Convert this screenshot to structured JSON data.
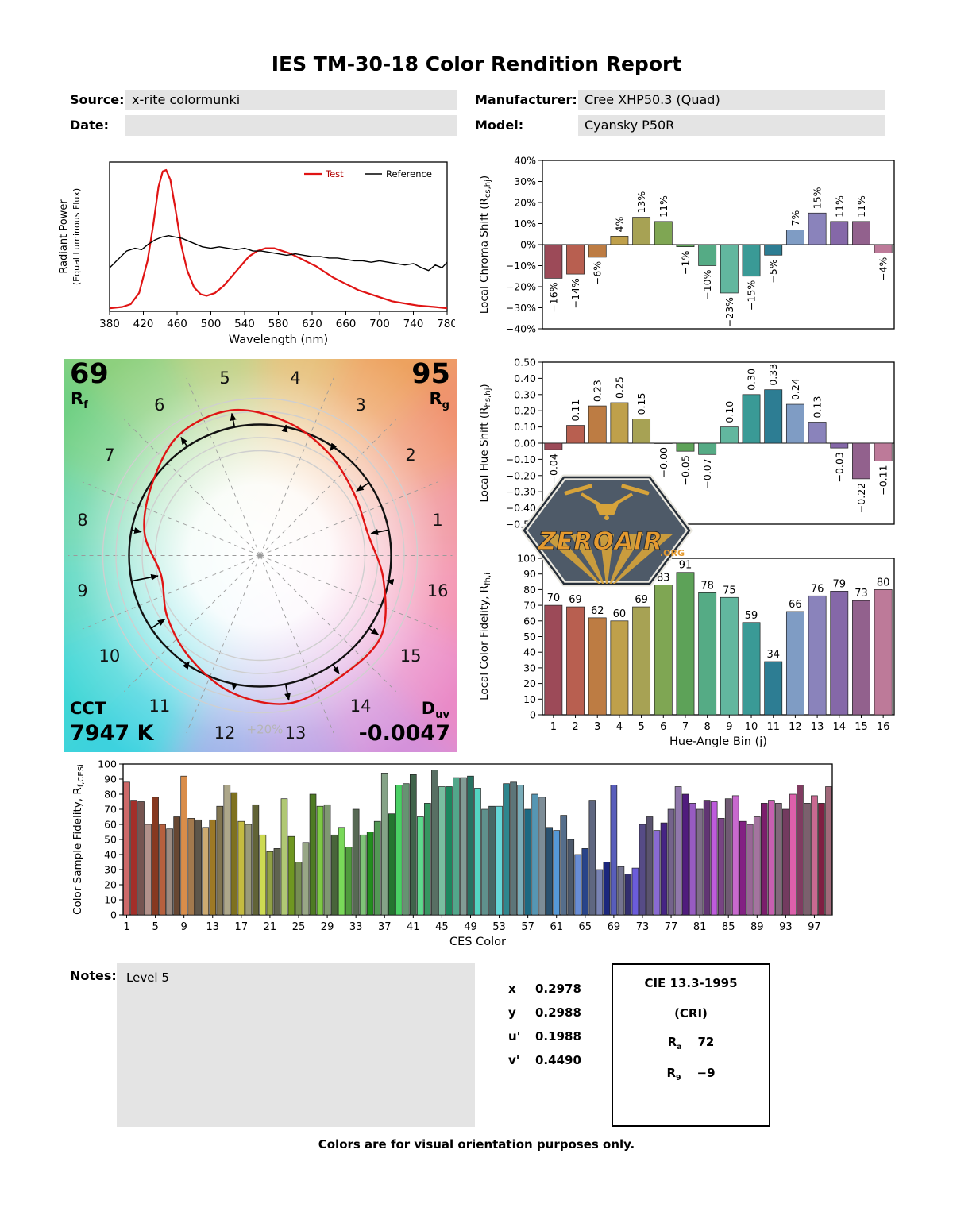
{
  "title": "IES TM-30-18 Color Rendition Report",
  "header": {
    "source_label": "Source:",
    "source_value": "x-rite colormunki",
    "date_label": "Date:",
    "date_value": "",
    "manufacturer_label": "Manufacturer:",
    "manufacturer_value": "Cree XHP50.3 (Quad)",
    "model_label": "Model:",
    "model_value": "Cyansky P50R"
  },
  "cvg": {
    "rf_value": "69",
    "rf_symbol": "R",
    "rf_sub": "f",
    "rg_value": "95",
    "rg_symbol": "R",
    "rg_sub": "g",
    "cct_label": "CCT",
    "cct_value": "7947 K",
    "duv_symbol": "D",
    "duv_sub": "uv",
    "duv_value": "-0.0047",
    "ring_label": "+20%",
    "bins": [
      "1",
      "2",
      "3",
      "4",
      "5",
      "6",
      "7",
      "8",
      "9",
      "10",
      "11",
      "12",
      "13",
      "14",
      "15",
      "16"
    ]
  },
  "watermark": {
    "name": "ZEROAIR",
    "org": ".ORG"
  },
  "notes": {
    "label": "Notes:",
    "value": "Level 5"
  },
  "chromaticity": {
    "x_label": "x",
    "x_value": "0.2978",
    "y_label": "y",
    "y_value": "0.2988",
    "u_label": "u'",
    "u_value": "0.1988",
    "v_label": "v'",
    "v_value": "0.4490"
  },
  "cri": {
    "title": "CIE 13.3-1995",
    "subtitle": "(CRI)",
    "ra_symbol": "R",
    "ra_sub": "a",
    "ra_value": "72",
    "r9_symbol": "R",
    "r9_sub": "9",
    "r9_value": "−9"
  },
  "footer": "Colors are for visual orientation purposes only.",
  "hue_bin_colors": [
    "#9c4a58",
    "#b85f50",
    "#bd7c43",
    "#bfa04b",
    "#a7a254",
    "#7fa653",
    "#5da258",
    "#55ab85",
    "#62b79f",
    "#3a9a96",
    "#2d7d93",
    "#7f9cc4",
    "#8a83bb",
    "#8568a8",
    "#92618d",
    "#bd7a99"
  ],
  "cvg_bg_colors": [
    "#ef8a94",
    "#f0926f",
    "#eda25e",
    "#e2b867",
    "#b5cb74",
    "#8ed07e",
    "#6fd084",
    "#5cd2a5",
    "#4cd4be",
    "#41d6d6",
    "#3ed2df",
    "#93a9e6",
    "#b49ae2",
    "#d391da",
    "#ea8ac6",
    "#f286a8"
  ],
  "chart_data": [
    {
      "id": "spd",
      "type": "line",
      "xlabel": "Wavelength (nm)",
      "ylabel": "Radiant Power",
      "ylabel2": "(Equal Luminous Flux)",
      "xlim": [
        380,
        780
      ],
      "xtick_step": 40,
      "ylim": [
        0,
        1
      ],
      "legend_position": "top-right",
      "series": [
        {
          "name": "Test",
          "color": "#e01414",
          "width": 2.2,
          "x": [
            380,
            395,
            405,
            415,
            425,
            432,
            438,
            443,
            447,
            452,
            458,
            465,
            472,
            480,
            488,
            495,
            505,
            515,
            525,
            535,
            545,
            555,
            565,
            575,
            585,
            595,
            605,
            615,
            625,
            635,
            645,
            655,
            665,
            675,
            685,
            695,
            705,
            715,
            725,
            735,
            745,
            755,
            765,
            780
          ],
          "y": [
            0.01,
            0.02,
            0.04,
            0.12,
            0.35,
            0.62,
            0.88,
            0.99,
            1.0,
            0.93,
            0.72,
            0.46,
            0.28,
            0.16,
            0.11,
            0.1,
            0.12,
            0.17,
            0.24,
            0.31,
            0.38,
            0.42,
            0.44,
            0.44,
            0.42,
            0.4,
            0.37,
            0.34,
            0.31,
            0.27,
            0.23,
            0.2,
            0.17,
            0.14,
            0.12,
            0.1,
            0.08,
            0.06,
            0.05,
            0.04,
            0.03,
            0.025,
            0.02,
            0.01
          ]
        },
        {
          "name": "Reference",
          "color": "#000000",
          "width": 1.4,
          "x": [
            380,
            390,
            400,
            410,
            418,
            426,
            434,
            442,
            450,
            458,
            466,
            474,
            482,
            490,
            500,
            510,
            520,
            530,
            540,
            550,
            560,
            570,
            580,
            590,
            600,
            610,
            620,
            630,
            640,
            650,
            660,
            670,
            680,
            690,
            700,
            710,
            720,
            730,
            740,
            750,
            758,
            766,
            774,
            780
          ],
          "y": [
            0.3,
            0.36,
            0.42,
            0.44,
            0.43,
            0.47,
            0.5,
            0.52,
            0.53,
            0.52,
            0.51,
            0.49,
            0.47,
            0.45,
            0.44,
            0.45,
            0.44,
            0.43,
            0.44,
            0.42,
            0.42,
            0.41,
            0.4,
            0.39,
            0.4,
            0.39,
            0.38,
            0.38,
            0.37,
            0.37,
            0.36,
            0.35,
            0.35,
            0.34,
            0.35,
            0.34,
            0.33,
            0.32,
            0.33,
            0.3,
            0.28,
            0.32,
            0.3,
            0.34
          ]
        }
      ]
    },
    {
      "id": "chroma_shift",
      "type": "bar",
      "ylabel": "Local Chroma Shift (R",
      "ylabel_sub": "cs,hj",
      "ylabel_end": ")",
      "ylim": [
        -40,
        40
      ],
      "ytick_step": 10,
      "ytick_suffix": "%",
      "categories": [
        1,
        2,
        3,
        4,
        5,
        6,
        7,
        8,
        9,
        10,
        11,
        12,
        13,
        14,
        15,
        16
      ],
      "values": [
        -16,
        -14,
        -6,
        4,
        13,
        11,
        -1,
        -10,
        -23,
        -15,
        -5,
        7,
        15,
        11,
        11,
        -4
      ],
      "labels": [
        "−16%",
        "−14%",
        "−6%",
        "4%",
        "13%",
        "11%",
        "−1%",
        "−10%",
        "−23%",
        "−15%",
        "−5%",
        "7%",
        "15%",
        "11%",
        "11%",
        "−4%"
      ]
    },
    {
      "id": "hue_shift",
      "type": "bar",
      "ylabel": "Local Hue Shift (R",
      "ylabel_sub": "hs,hj",
      "ylabel_end": ")",
      "ylim": [
        -0.5,
        0.5
      ],
      "ytick_step": 0.1,
      "ytick_suffix": "",
      "categories": [
        1,
        2,
        3,
        4,
        5,
        6,
        7,
        8,
        9,
        10,
        11,
        12,
        13,
        14,
        15,
        16
      ],
      "values": [
        -0.04,
        0.11,
        0.23,
        0.25,
        0.15,
        0,
        -0.05,
        -0.07,
        0.1,
        0.3,
        0.33,
        0.24,
        0.13,
        -0.03,
        -0.22,
        -0.11
      ],
      "labels": [
        "−0.04",
        "0.11",
        "0.23",
        "0.25",
        "0.15",
        "−0.00",
        "−0.05",
        "−0.07",
        "0.10",
        "0.30",
        "0.33",
        "0.24",
        "0.13",
        "−0.03",
        "−0.22",
        "−0.11"
      ]
    },
    {
      "id": "local_fidelity",
      "type": "bar",
      "ylabel": "Local Color Fidelity, R",
      "ylabel_sub": "fh,i",
      "xlabel": "Hue-Angle Bin (j)",
      "ylim": [
        0,
        100
      ],
      "ytick_step": 10,
      "ytick_suffix": "",
      "categories": [
        1,
        2,
        3,
        4,
        5,
        6,
        7,
        8,
        9,
        10,
        11,
        12,
        13,
        14,
        15,
        16
      ],
      "values": [
        70,
        69,
        62,
        60,
        69,
        83,
        91,
        78,
        75,
        59,
        34,
        66,
        76,
        79,
        73,
        80
      ]
    },
    {
      "id": "ces",
      "type": "bar",
      "ylabel": "Color Sample Fidelity, R",
      "ylabel_sub": "f,CESi",
      "xlabel": "CES Color",
      "ylim": [
        0,
        100
      ],
      "ytick_step": 10,
      "ytick_suffix": "",
      "xtick_every": 4,
      "xtick_labels": [
        1,
        5,
        9,
        13,
        17,
        21,
        25,
        29,
        33,
        37,
        41,
        45,
        49,
        53,
        57,
        61,
        65,
        69,
        73,
        77,
        81,
        85,
        89,
        93,
        97
      ],
      "values": [
        88,
        76,
        75,
        60,
        78,
        60,
        57,
        65,
        92,
        64,
        63,
        58,
        63,
        72,
        86,
        81,
        62,
        60,
        73,
        53,
        42,
        44,
        77,
        52,
        35,
        48,
        80,
        72,
        73,
        53,
        58,
        45,
        70,
        53,
        55,
        62,
        94,
        67,
        86,
        87,
        93,
        65,
        74,
        96,
        85,
        85,
        91,
        91,
        92,
        84,
        70,
        72,
        72,
        87,
        88,
        86,
        70,
        80,
        78,
        58,
        56,
        66,
        50,
        40,
        44,
        76,
        30,
        35,
        86,
        32,
        27,
        31,
        60,
        65,
        56,
        61,
        70,
        85,
        80,
        74,
        70,
        76,
        75,
        64,
        77,
        79,
        62,
        60,
        65,
        74,
        76,
        74,
        70,
        80,
        86,
        74,
        79,
        74,
        85
      ]
    }
  ]
}
